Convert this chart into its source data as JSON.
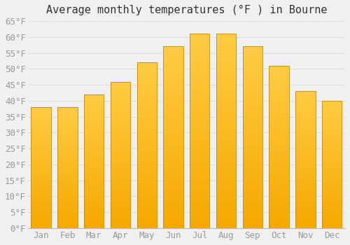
{
  "title": "Average monthly temperatures (°F ) in Bourne",
  "months": [
    "Jan",
    "Feb",
    "Mar",
    "Apr",
    "May",
    "Jun",
    "Jul",
    "Aug",
    "Sep",
    "Oct",
    "Nov",
    "Dec"
  ],
  "values": [
    38,
    38,
    42,
    46,
    52,
    57,
    61,
    61,
    57,
    51,
    43,
    40
  ],
  "bar_color_top": "#FFCC44",
  "bar_color_bottom": "#F5A800",
  "bar_edge_color": "#C88800",
  "background_color": "#F0F0F0",
  "ylim": [
    0,
    65
  ],
  "yticks": [
    0,
    5,
    10,
    15,
    20,
    25,
    30,
    35,
    40,
    45,
    50,
    55,
    60,
    65
  ],
  "title_fontsize": 11,
  "tick_fontsize": 9,
  "grid_color": "#DDDDDD",
  "tick_color": "#999999"
}
